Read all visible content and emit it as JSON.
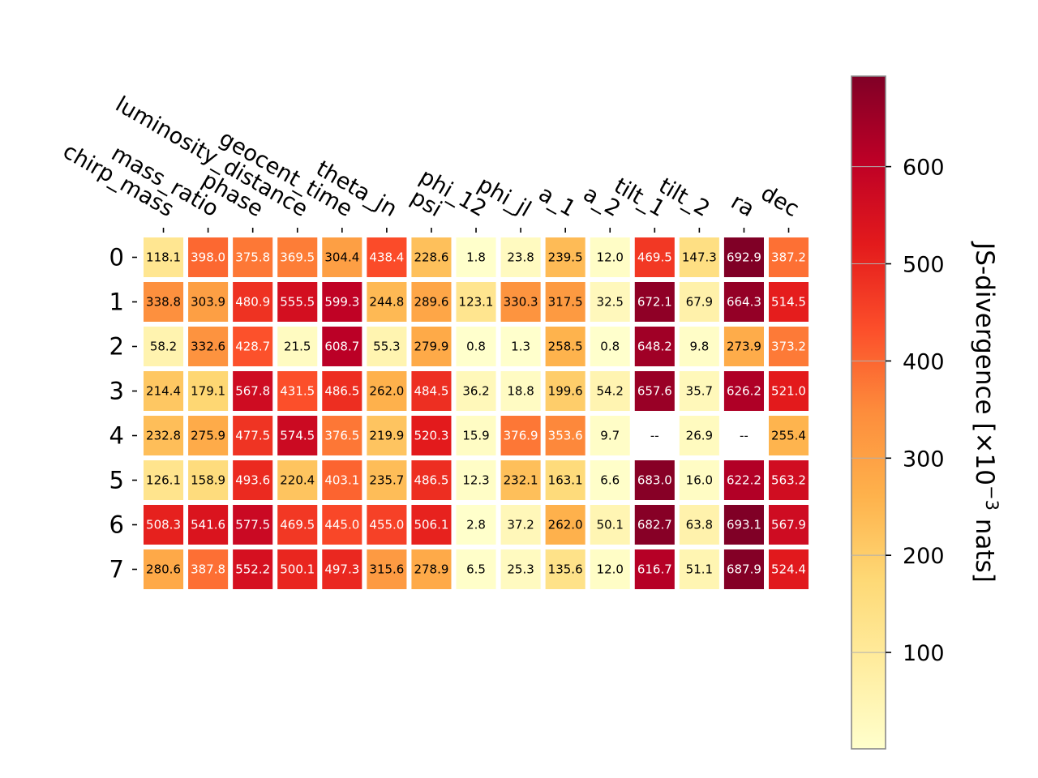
{
  "chart_data": {
    "type": "heatmap",
    "columns": [
      "chirp_mass",
      "mass_ratio",
      "phase",
      "luminosity_distance",
      "geocent_time",
      "theta_jn",
      "psi",
      "phi_12",
      "phi_jl",
      "a_1",
      "a_2",
      "tilt_1",
      "tilt_2",
      "ra",
      "dec"
    ],
    "rows": [
      "0",
      "1",
      "2",
      "3",
      "4",
      "5",
      "6",
      "7"
    ],
    "values": [
      [
        118.1,
        398.0,
        375.8,
        369.5,
        304.4,
        438.4,
        228.6,
        1.8,
        23.8,
        239.5,
        12.0,
        469.5,
        147.3,
        692.9,
        387.2
      ],
      [
        338.8,
        303.9,
        480.9,
        555.5,
        599.3,
        244.8,
        289.6,
        123.1,
        330.3,
        317.5,
        32.5,
        672.1,
        67.9,
        664.3,
        514.5
      ],
      [
        58.2,
        332.6,
        428.7,
        21.5,
        608.7,
        55.3,
        279.9,
        0.8,
        1.3,
        258.5,
        0.8,
        648.2,
        9.8,
        273.9,
        373.2
      ],
      [
        214.4,
        179.1,
        567.8,
        431.5,
        486.5,
        262.0,
        484.5,
        36.2,
        18.8,
        199.6,
        54.2,
        657.6,
        35.7,
        626.2,
        521.0
      ],
      [
        232.8,
        275.9,
        477.5,
        574.5,
        376.5,
        219.9,
        520.3,
        15.9,
        376.9,
        353.6,
        9.7,
        null,
        26.9,
        null,
        255.4
      ],
      [
        126.1,
        158.9,
        493.6,
        220.4,
        403.1,
        235.7,
        486.5,
        12.3,
        232.1,
        163.1,
        6.6,
        683.0,
        16.0,
        622.2,
        563.2
      ],
      [
        508.3,
        541.6,
        577.5,
        469.5,
        445.0,
        455.0,
        506.1,
        2.8,
        37.2,
        262.0,
        50.1,
        682.7,
        63.8,
        693.1,
        567.9
      ],
      [
        280.6,
        387.8,
        552.2,
        500.1,
        497.3,
        315.6,
        278.9,
        6.5,
        25.3,
        135.6,
        12.0,
        616.7,
        51.1,
        687.9,
        524.4
      ]
    ],
    "missing_label": "--",
    "colormap": "YlOrRd",
    "colorbar": {
      "label_prefix": "JS-divergence [×10",
      "label_exponent": "−3",
      "label_suffix": " nats]",
      "ticks": [
        100,
        200,
        300,
        400,
        500,
        600
      ],
      "range": [
        0.8,
        693.1
      ]
    },
    "text_color_threshold": 350
  }
}
